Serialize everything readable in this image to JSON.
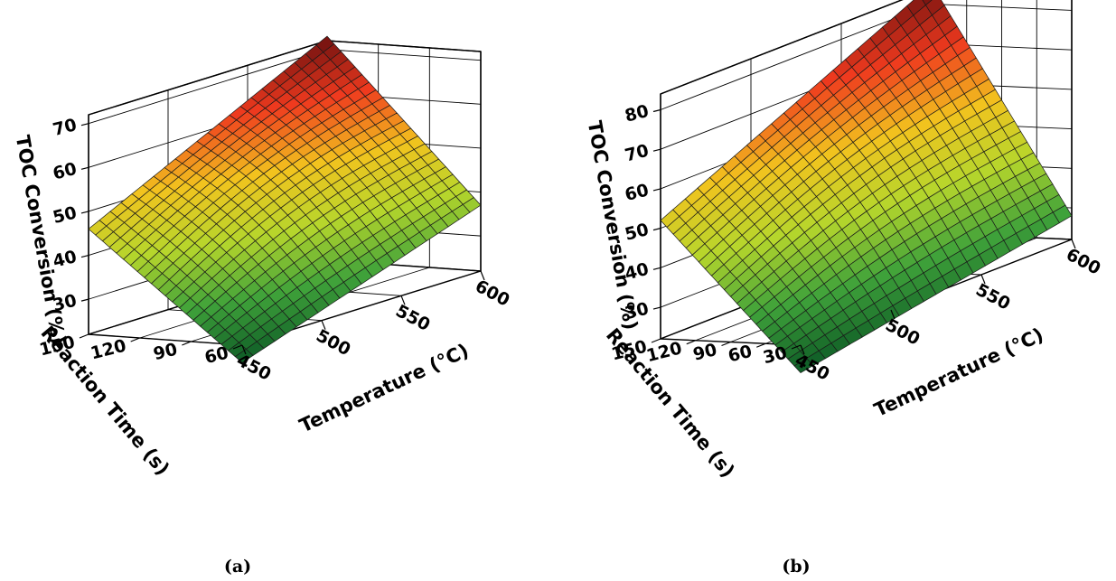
{
  "chart_data": [
    {
      "type": "surface3d",
      "panel_label": "(a)",
      "xlabel": "Temperature (°C)",
      "ylabel": "Reaction Time (s)",
      "zlabel": "TOC Conversion (%)",
      "x_ticks": [
        "450",
        "500",
        "550",
        "600"
      ],
      "y_ticks": [
        "60",
        "90",
        "120",
        "150"
      ],
      "z_ticks": [
        "30",
        "40",
        "50",
        "60",
        "70"
      ],
      "xlim": [
        450,
        600
      ],
      "ylim": [
        60,
        150
      ],
      "zlim": [
        22,
        72
      ],
      "surface_corners": [
        {
          "temperature": 450,
          "time": 60,
          "toc": 18
        },
        {
          "temperature": 450,
          "time": 150,
          "toc": 46
        },
        {
          "temperature": 600,
          "time": 60,
          "toc": 37
        },
        {
          "temperature": 600,
          "time": 150,
          "toc": 73
        }
      ],
      "colormap": [
        "#0d5a26",
        "#3fa23a",
        "#b6d62c",
        "#f2c31e",
        "#ef3a1e",
        "#6b0f0f"
      ]
    },
    {
      "type": "surface3d",
      "panel_label": "(b)",
      "xlabel": "Temperature (°C)",
      "ylabel": "Reaction Time (s)",
      "zlabel": "TOC Conversion (%)",
      "x_ticks": [
        "450",
        "500",
        "550",
        "600"
      ],
      "y_ticks": [
        "30",
        "60",
        "90",
        "120",
        "150"
      ],
      "z_ticks": [
        "30",
        "40",
        "50",
        "60",
        "70",
        "80"
      ],
      "xlim": [
        450,
        600
      ],
      "ylim": [
        30,
        150
      ],
      "zlim": [
        22,
        84
      ],
      "surface_corners": [
        {
          "temperature": 450,
          "time": 30,
          "toc": 15
        },
        {
          "temperature": 450,
          "time": 150,
          "toc": 52
        },
        {
          "temperature": 600,
          "time": 30,
          "toc": 28
        },
        {
          "temperature": 600,
          "time": 150,
          "toc": 85
        }
      ],
      "colormap": [
        "#0d5a26",
        "#3fa23a",
        "#b6d62c",
        "#f2c31e",
        "#ef3a1e",
        "#6b0f0f"
      ]
    }
  ]
}
